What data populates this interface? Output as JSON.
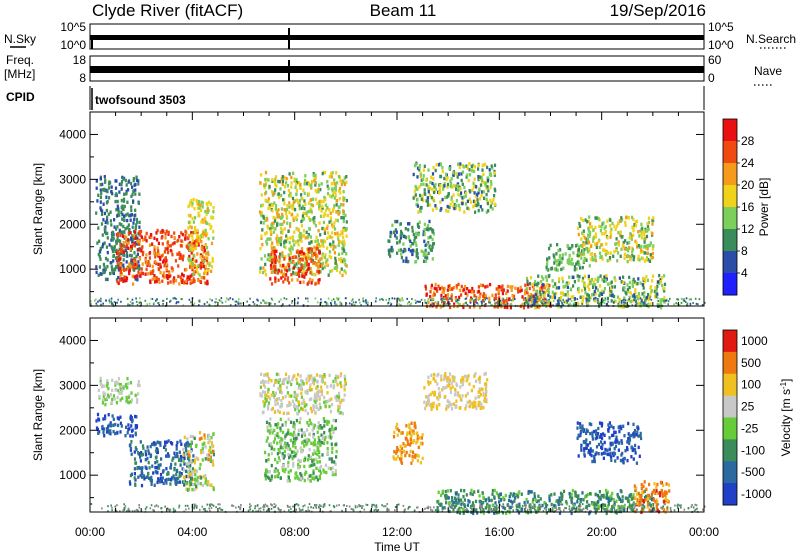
{
  "header": {
    "station": "Clyde River (fitACF)",
    "beam": "Beam 11",
    "date": "19/Sep/2016"
  },
  "strips": {
    "nsky": {
      "label": "N.Sky",
      "left_ticks": [
        "10^5",
        "10^0"
      ],
      "right_ticks": [
        "10^5",
        "10^0"
      ],
      "right_label": "N.Search"
    },
    "freq": {
      "label_line1": "Freq.",
      "label_line2": "[MHz]",
      "left_ticks": [
        "18",
        "8"
      ],
      "right_ticks": [
        "60",
        "0"
      ],
      "right_label": "Nave"
    },
    "cpid": {
      "label": "CPID",
      "value": "twofsound 3503"
    }
  },
  "x_axis": {
    "label": "Time UT",
    "ticks": [
      "00:00",
      "04:00",
      "08:00",
      "12:00",
      "16:00",
      "20:00",
      "00:00"
    ]
  },
  "chart_data": [
    {
      "type": "heatmap",
      "title": "",
      "xlabel": "Time UT",
      "ylabel": "Slant Range [km]",
      "xlim": [
        0,
        24
      ],
      "ylim": [
        180,
        4500
      ],
      "y_ticks": [
        1000,
        2000,
        3000,
        4000
      ],
      "colorbar": {
        "label": "Power [dB]",
        "range": [
          0,
          32
        ],
        "tick_labels": [
          "4",
          "8",
          "12",
          "16",
          "20",
          "24",
          "28"
        ],
        "colors": [
          "#2020ff",
          "#2a4ea8",
          "#3a8c5a",
          "#7ccf5a",
          "#f0d21a",
          "#f59a1a",
          "#f04a10",
          "#e81010"
        ]
      },
      "scatter_regions": [
        {
          "t": [
            0.2,
            1.9
          ],
          "r": [
            800,
            3100
          ],
          "val": [
            6,
            12
          ]
        },
        {
          "t": [
            1.0,
            4.6
          ],
          "r": [
            700,
            1900
          ],
          "val": [
            22,
            31
          ]
        },
        {
          "t": [
            3.8,
            4.8
          ],
          "r": [
            900,
            2600
          ],
          "val": [
            14,
            22
          ]
        },
        {
          "t": [
            6.6,
            10.0
          ],
          "r": [
            900,
            3200
          ],
          "val": [
            10,
            22
          ]
        },
        {
          "t": [
            7.0,
            9.0
          ],
          "r": [
            700,
            1500
          ],
          "val": [
            22,
            30
          ]
        },
        {
          "t": [
            11.6,
            13.4
          ],
          "r": [
            1200,
            2100
          ],
          "val": [
            6,
            14
          ]
        },
        {
          "t": [
            12.6,
            15.8
          ],
          "r": [
            2300,
            3400
          ],
          "val": [
            6,
            20
          ]
        },
        {
          "t": [
            13.0,
            18.0
          ],
          "r": [
            180,
            700
          ],
          "val": [
            20,
            31
          ]
        },
        {
          "t": [
            17.0,
            22.5
          ],
          "r": [
            180,
            900
          ],
          "val": [
            6,
            20
          ]
        },
        {
          "t": [
            19.0,
            22.0
          ],
          "r": [
            1200,
            2200
          ],
          "val": [
            10,
            22
          ]
        },
        {
          "t": [
            17.8,
            19.5
          ],
          "r": [
            1000,
            1600
          ],
          "val": [
            8,
            16
          ]
        }
      ]
    },
    {
      "type": "heatmap",
      "title": "",
      "xlabel": "Time UT",
      "ylabel": "Slant Range [km]",
      "xlim": [
        0,
        24
      ],
      "ylim": [
        180,
        4500
      ],
      "y_ticks": [
        1000,
        2000,
        3000,
        4000
      ],
      "colorbar": {
        "label": "Velocity [m s^-1]",
        "tick_labels": [
          "1000",
          "500",
          "100",
          "25",
          "-25",
          "-100",
          "-500",
          "-1000"
        ],
        "colors": [
          "#2040c8",
          "#2a6aa0",
          "#3a8c5a",
          "#66cc3a",
          "#c8c8c8",
          "#f0c020",
          "#f07810",
          "#e01a10"
        ]
      },
      "scatter_regions": [
        {
          "t": [
            0.2,
            1.8
          ],
          "r": [
            1900,
            2400
          ],
          "val": [
            0,
            1
          ]
        },
        {
          "t": [
            0.3,
            1.9
          ],
          "r": [
            2600,
            3200
          ],
          "val": [
            3,
            4
          ]
        },
        {
          "t": [
            1.5,
            4.0
          ],
          "r": [
            800,
            1800
          ],
          "val": [
            0,
            2
          ]
        },
        {
          "t": [
            3.6,
            4.8
          ],
          "r": [
            700,
            2000
          ],
          "val": [
            2,
            6
          ]
        },
        {
          "t": [
            6.6,
            10.0
          ],
          "r": [
            2400,
            3300
          ],
          "val": [
            3,
            5
          ]
        },
        {
          "t": [
            6.8,
            9.6
          ],
          "r": [
            900,
            2300
          ],
          "val": [
            2,
            4
          ]
        },
        {
          "t": [
            11.8,
            13.0
          ],
          "r": [
            1300,
            2200
          ],
          "val": [
            5,
            6
          ]
        },
        {
          "t": [
            13.0,
            15.5
          ],
          "r": [
            2500,
            3300
          ],
          "val": [
            4,
            5
          ]
        },
        {
          "t": [
            13.5,
            22.0
          ],
          "r": [
            180,
            700
          ],
          "val": [
            1,
            3
          ]
        },
        {
          "t": [
            19.0,
            21.5
          ],
          "r": [
            1300,
            2200
          ],
          "val": [
            0,
            1
          ]
        },
        {
          "t": [
            21.2,
            22.6
          ],
          "r": [
            200,
            900
          ],
          "val": [
            5,
            7
          ]
        }
      ]
    }
  ]
}
